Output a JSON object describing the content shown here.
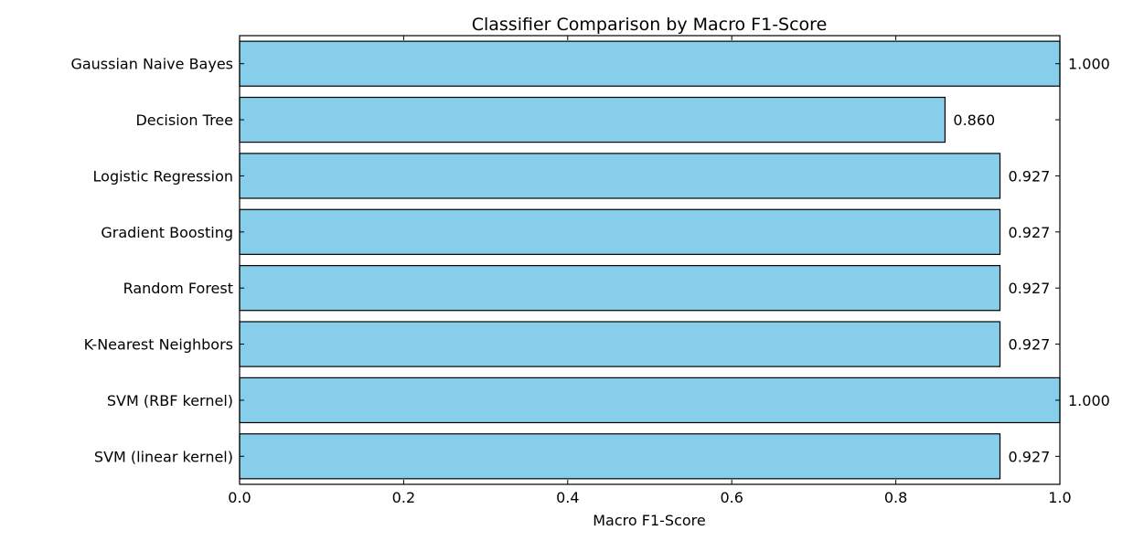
{
  "chart_data": {
    "type": "bar",
    "orientation": "horizontal",
    "title": "Classifier Comparison by Macro F1-Score",
    "xlabel": "Macro F1-Score",
    "ylabel": "",
    "xlim": [
      0.0,
      1.0
    ],
    "x_ticks": [
      "0.0",
      "0.2",
      "0.4",
      "0.6",
      "0.8",
      "1.0"
    ],
    "categories": [
      "Gaussian Naive Bayes",
      "Decision Tree",
      "Logistic Regression",
      "Gradient Boosting",
      "Random Forest",
      "K-Nearest Neighbors",
      "SVM (RBF kernel)",
      "SVM (linear kernel)"
    ],
    "values": [
      1.0,
      0.86,
      0.927,
      0.927,
      0.927,
      0.927,
      1.0,
      0.927
    ],
    "value_labels": [
      "1.000",
      "0.860",
      "0.927",
      "0.927",
      "0.927",
      "0.927",
      "1.000",
      "0.927"
    ],
    "grid": false,
    "bar_color": "#87ceeb",
    "edge_color": "#000000"
  }
}
